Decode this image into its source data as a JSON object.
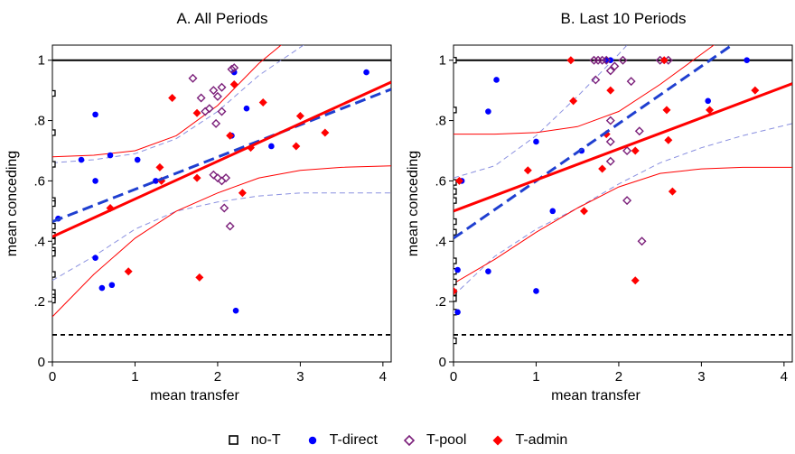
{
  "colors": {
    "no_t": "#000000",
    "t_direct": "#0000ff",
    "t_pool": "#7b1f7a",
    "t_admin": "#ff0000",
    "fit_direct": "#1f3fd0",
    "ci_direct": "#8a90e0",
    "fit_admin": "#ff0000"
  },
  "legend": [
    {
      "label": "no-T",
      "series": "no_t",
      "marker": "square-open"
    },
    {
      "label": "T-direct",
      "series": "t_direct",
      "marker": "circle"
    },
    {
      "label": "T-pool",
      "series": "t_pool",
      "marker": "diamond-open"
    },
    {
      "label": "T-admin",
      "series": "t_admin",
      "marker": "diamond"
    }
  ],
  "chart_data": [
    {
      "type": "scatter",
      "title": "A. All Periods",
      "xlabel": "mean transfer",
      "ylabel": "mean conceding",
      "xlim": [
        0,
        4.1
      ],
      "ylim": [
        0,
        1.05
      ],
      "xticks": [
        0,
        1,
        2,
        3,
        4
      ],
      "yticks": [
        {
          "v": 0,
          "label": "0"
        },
        {
          "v": 0.2,
          "label": ".2"
        },
        {
          "v": 0.4,
          "label": ".4"
        },
        {
          "v": 0.6,
          "label": ".6"
        },
        {
          "v": 0.8,
          "label": ".8"
        },
        {
          "v": 1,
          "label": "1"
        }
      ],
      "hlines": [
        {
          "y": 1,
          "style": "solid"
        },
        {
          "y": 0.09,
          "style": "dashed"
        }
      ],
      "fits": {
        "t_direct": {
          "intercept": 0.465,
          "slope": 0.107
        },
        "t_admin": {
          "intercept": 0.415,
          "slope": 0.125
        }
      },
      "ci": {
        "t_direct": {
          "upper": [
            [
              0,
              0.66
            ],
            [
              0.5,
              0.67
            ],
            [
              1,
              0.69
            ],
            [
              1.5,
              0.74
            ],
            [
              2,
              0.83
            ],
            [
              2.5,
              0.95
            ],
            [
              3.2,
              1.08
            ]
          ],
          "lower": [
            [
              0,
              0.27
            ],
            [
              0.5,
              0.35
            ],
            [
              1,
              0.44
            ],
            [
              1.5,
              0.5
            ],
            [
              2,
              0.53
            ],
            [
              2.5,
              0.55
            ],
            [
              3,
              0.56
            ],
            [
              4.1,
              0.56
            ]
          ]
        },
        "t_admin": {
          "upper": [
            [
              0,
              0.68
            ],
            [
              0.5,
              0.685
            ],
            [
              1,
              0.7
            ],
            [
              1.5,
              0.75
            ],
            [
              2,
              0.85
            ],
            [
              2.5,
              0.99
            ],
            [
              2.9,
              1.08
            ]
          ],
          "lower": [
            [
              0,
              0.15
            ],
            [
              0.5,
              0.29
            ],
            [
              1,
              0.41
            ],
            [
              1.5,
              0.5
            ],
            [
              2,
              0.56
            ],
            [
              2.5,
              0.61
            ],
            [
              3,
              0.635
            ],
            [
              3.5,
              0.645
            ],
            [
              4.1,
              0.65
            ]
          ]
        }
      },
      "series": [
        {
          "key": "no_t",
          "name": "no-T",
          "points": [
            [
              0,
              0.89
            ],
            [
              0,
              0.76
            ],
            [
              0,
              0.655
            ],
            [
              0,
              0.535
            ],
            [
              0,
              0.525
            ],
            [
              0,
              0.45
            ],
            [
              0,
              0.42
            ],
            [
              0,
              0.4
            ],
            [
              0,
              0.37
            ],
            [
              0,
              0.36
            ],
            [
              0,
              0.29
            ],
            [
              0,
              0.23
            ],
            [
              0,
              0.215
            ],
            [
              0,
              0.205
            ]
          ]
        },
        {
          "key": "t_direct",
          "name": "T-direct",
          "points": [
            [
              0.07,
              0.475
            ],
            [
              0.35,
              0.67
            ],
            [
              0.52,
              0.82
            ],
            [
              0.52,
              0.6
            ],
            [
              0.52,
              0.345
            ],
            [
              0.6,
              0.245
            ],
            [
              0.7,
              0.685
            ],
            [
              0.72,
              0.255
            ],
            [
              1.03,
              0.67
            ],
            [
              1.25,
              0.6
            ],
            [
              2.17,
              0.75
            ],
            [
              2.2,
              0.96
            ],
            [
              2.22,
              0.17
            ],
            [
              2.35,
              0.84
            ],
            [
              2.65,
              0.715
            ],
            [
              3.8,
              0.96
            ]
          ]
        },
        {
          "key": "t_pool",
          "name": "T-pool",
          "points": [
            [
              1.7,
              0.94
            ],
            [
              1.8,
              0.875
            ],
            [
              1.85,
              0.83
            ],
            [
              1.9,
              0.84
            ],
            [
              1.95,
              0.9
            ],
            [
              1.98,
              0.79
            ],
            [
              2.0,
              0.88
            ],
            [
              2.05,
              0.91
            ],
            [
              2.05,
              0.83
            ],
            [
              1.95,
              0.62
            ],
            [
              2.0,
              0.61
            ],
            [
              2.05,
              0.6
            ],
            [
              2.08,
              0.51
            ],
            [
              2.1,
              0.61
            ],
            [
              2.15,
              0.45
            ],
            [
              2.17,
              0.97
            ],
            [
              2.2,
              0.975
            ]
          ]
        },
        {
          "key": "t_admin",
          "name": "T-admin",
          "points": [
            [
              0.7,
              0.51
            ],
            [
              0.92,
              0.3
            ],
            [
              1.3,
              0.645
            ],
            [
              1.32,
              0.6
            ],
            [
              1.45,
              0.875
            ],
            [
              1.75,
              0.825
            ],
            [
              1.75,
              0.61
            ],
            [
              1.78,
              0.28
            ],
            [
              2.15,
              0.75
            ],
            [
              2.2,
              0.92
            ],
            [
              2.3,
              0.56
            ],
            [
              2.4,
              0.71
            ],
            [
              2.55,
              0.86
            ],
            [
              2.95,
              0.715
            ],
            [
              3.0,
              0.815
            ],
            [
              3.3,
              0.76
            ]
          ]
        }
      ]
    },
    {
      "type": "scatter",
      "title": "B. Last 10 Periods",
      "xlabel": "mean transfer",
      "ylabel": "mean conceding",
      "xlim": [
        0,
        4.1
      ],
      "ylim": [
        0,
        1.05
      ],
      "xticks": [
        0,
        1,
        2,
        3,
        4
      ],
      "yticks": [
        {
          "v": 0,
          "label": "0"
        },
        {
          "v": 0.2,
          "label": ".2"
        },
        {
          "v": 0.4,
          "label": ".4"
        },
        {
          "v": 0.6,
          "label": ".6"
        },
        {
          "v": 0.8,
          "label": ".8"
        },
        {
          "v": 1,
          "label": "1"
        }
      ],
      "hlines": [
        {
          "y": 1,
          "style": "solid"
        },
        {
          "y": 0.09,
          "style": "dashed"
        }
      ],
      "fits": {
        "t_direct": {
          "intercept": 0.41,
          "slope": 0.19
        },
        "t_admin": {
          "intercept": 0.5,
          "slope": 0.103
        }
      },
      "ci": {
        "t_direct": {
          "upper": [
            [
              0,
              0.61
            ],
            [
              0.5,
              0.65
            ],
            [
              1,
              0.75
            ],
            [
              1.5,
              0.88
            ],
            [
              2,
              1.02
            ],
            [
              2.2,
              1.08
            ]
          ],
          "lower": [
            [
              0,
              0.22
            ],
            [
              0.5,
              0.35
            ],
            [
              1,
              0.44
            ],
            [
              1.5,
              0.51
            ],
            [
              2,
              0.59
            ],
            [
              2.5,
              0.66
            ],
            [
              3,
              0.71
            ],
            [
              3.5,
              0.75
            ],
            [
              4.1,
              0.79
            ]
          ]
        },
        "t_admin": {
          "upper": [
            [
              0,
              0.755
            ],
            [
              0.5,
              0.755
            ],
            [
              1,
              0.76
            ],
            [
              1.5,
              0.78
            ],
            [
              2,
              0.83
            ],
            [
              2.5,
              0.92
            ],
            [
              3,
              1.02
            ],
            [
              3.3,
              1.08
            ]
          ],
          "lower": [
            [
              0,
              0.26
            ],
            [
              0.5,
              0.34
            ],
            [
              1,
              0.43
            ],
            [
              1.5,
              0.51
            ],
            [
              2,
              0.58
            ],
            [
              2.5,
              0.625
            ],
            [
              3,
              0.64
            ],
            [
              3.5,
              0.645
            ],
            [
              4.1,
              0.645
            ]
          ]
        }
      },
      "series": [
        {
          "key": "no_t",
          "name": "no-T",
          "points": [
            [
              0,
              1.0
            ],
            [
              0,
              0.835
            ],
            [
              0,
              0.595
            ],
            [
              0,
              0.565
            ],
            [
              0,
              0.535
            ],
            [
              0,
              0.465
            ],
            [
              0,
              0.43
            ],
            [
              0,
              0.335
            ],
            [
              0,
              0.3
            ],
            [
              0,
              0.265
            ],
            [
              0,
              0.23
            ],
            [
              0,
              0.21
            ],
            [
              0,
              0.165
            ],
            [
              0,
              0.07
            ]
          ]
        },
        {
          "key": "t_direct",
          "name": "T-direct",
          "points": [
            [
              0.05,
              0.305
            ],
            [
              0.05,
              0.165
            ],
            [
              0.1,
              0.6
            ],
            [
              0.42,
              0.3
            ],
            [
              0.42,
              0.83
            ],
            [
              0.52,
              0.935
            ],
            [
              1.0,
              0.73
            ],
            [
              1.0,
              0.235
            ],
            [
              1.2,
              0.5
            ],
            [
              1.55,
              0.7
            ],
            [
              1.85,
              1.0
            ],
            [
              1.9,
              1.0
            ],
            [
              3.08,
              0.865
            ],
            [
              3.55,
              1.0
            ]
          ]
        },
        {
          "key": "t_pool",
          "name": "T-pool",
          "points": [
            [
              1.7,
              1.0
            ],
            [
              1.75,
              1.0
            ],
            [
              1.8,
              1.0
            ],
            [
              1.85,
              1.0
            ],
            [
              1.9,
              0.965
            ],
            [
              1.9,
              0.8
            ],
            [
              1.9,
              0.73
            ],
            [
              1.9,
              0.665
            ],
            [
              1.95,
              0.98
            ],
            [
              2.05,
              1.0
            ],
            [
              1.72,
              0.935
            ],
            [
              2.1,
              0.7
            ],
            [
              2.15,
              0.93
            ],
            [
              2.1,
              0.535
            ],
            [
              2.25,
              0.765
            ],
            [
              2.28,
              0.4
            ],
            [
              2.5,
              1.0
            ],
            [
              2.6,
              1.0
            ]
          ]
        },
        {
          "key": "t_admin",
          "name": "T-admin",
          "points": [
            [
              0.07,
              0.6
            ],
            [
              0.0,
              0.235
            ],
            [
              0.9,
              0.635
            ],
            [
              1.42,
              1.0
            ],
            [
              1.45,
              0.865
            ],
            [
              1.58,
              0.5
            ],
            [
              1.8,
              0.64
            ],
            [
              1.85,
              0.755
            ],
            [
              1.9,
              0.9
            ],
            [
              2.2,
              0.7
            ],
            [
              2.2,
              0.27
            ],
            [
              2.55,
              1.0
            ],
            [
              2.6,
              0.735
            ],
            [
              2.65,
              0.565
            ],
            [
              3.1,
              0.835
            ],
            [
              3.65,
              0.9
            ],
            [
              2.58,
              0.835
            ]
          ]
        }
      ]
    }
  ]
}
